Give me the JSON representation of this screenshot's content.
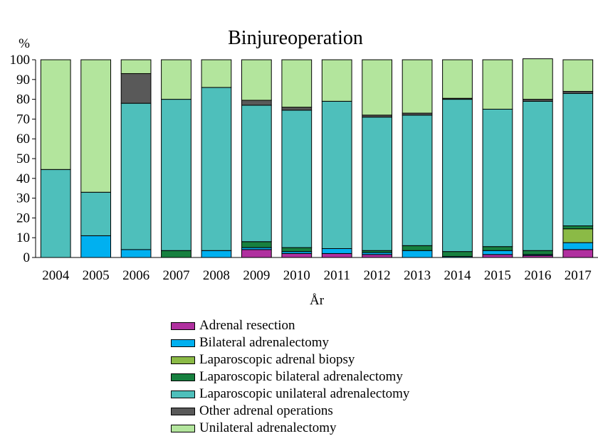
{
  "chart_data": {
    "type": "bar",
    "stacked": true,
    "title": "Binjureoperation",
    "xlabel": "År",
    "ylabel": "%",
    "ylim": [
      0,
      100
    ],
    "yticks": [
      0,
      10,
      20,
      30,
      40,
      50,
      60,
      70,
      80,
      90,
      100
    ],
    "categories": [
      "2004",
      "2005",
      "2006",
      "2007",
      "2008",
      "2009",
      "2010",
      "2011",
      "2012",
      "2013",
      "2014",
      "2015",
      "2016",
      "2017"
    ],
    "series": [
      {
        "name": "Adrenal resection",
        "color": "#b0309f",
        "values": [
          0,
          0,
          0,
          0,
          0,
          4,
          2,
          2,
          1.5,
          0,
          0,
          1.5,
          1,
          4
        ]
      },
      {
        "name": "Bilateral adrenalectomy",
        "color": "#00b0f0",
        "values": [
          0,
          11,
          4,
          0,
          3.5,
          1,
          1,
          2.5,
          1,
          3.5,
          0.5,
          2,
          0.5,
          3.5
        ]
      },
      {
        "name": "Laparoscopic adrenal biopsy",
        "color": "#8bba46",
        "values": [
          0,
          0,
          0,
          0,
          0,
          0,
          0,
          0,
          0,
          0,
          0,
          0,
          0,
          7
        ]
      },
      {
        "name": "Laparoscopic bilateral adrenalectomy",
        "color": "#17803f",
        "values": [
          0,
          0,
          0,
          3.5,
          0,
          3,
          2,
          0,
          1,
          2.5,
          2.5,
          2,
          2,
          1.5
        ]
      },
      {
        "name": "Laparoscopic unilateral adrenalectomy",
        "color": "#4ebfbb",
        "values": [
          44.5,
          22,
          74,
          76.5,
          82.5,
          69,
          69.5,
          74.5,
          67.5,
          66,
          77,
          69.5,
          75.5,
          67
        ]
      },
      {
        "name": "Other adrenal operations",
        "color": "#595959",
        "values": [
          0,
          0,
          15,
          0,
          0,
          2.5,
          1.5,
          0,
          1,
          1,
          0.5,
          0,
          1,
          1
        ]
      },
      {
        "name": "Unilateral adrenalectomy",
        "color": "#b3e59d",
        "values": [
          55.5,
          67,
          7,
          20,
          14,
          20.5,
          24,
          21,
          28,
          27,
          19.5,
          25,
          20.5,
          16
        ]
      }
    ]
  }
}
